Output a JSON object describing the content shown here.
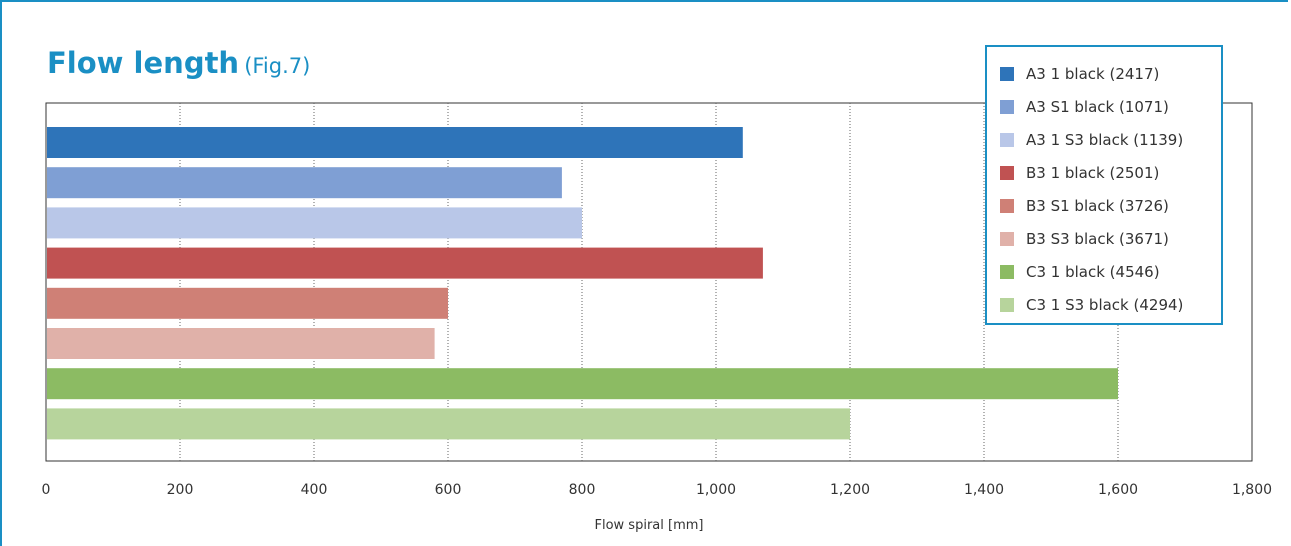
{
  "title": {
    "main": "Flow length",
    "sub": "(Fig.7)"
  },
  "chart_data": {
    "type": "bar",
    "orientation": "horizontal",
    "xlabel": "Flow spiral [mm]",
    "xlim": [
      0,
      1800
    ],
    "xticks": [
      0,
      200,
      400,
      600,
      800,
      1000,
      1200,
      1400,
      1600,
      1800
    ],
    "xtick_labels": [
      "0",
      "200",
      "400",
      "600",
      "800",
      "1,000",
      "1,200",
      "1,400",
      "1,600",
      "1,800"
    ],
    "grid": "vertical dotted",
    "legend_position": "top-right",
    "series": [
      {
        "name": "A3 1 black  (2417)",
        "value": 1040,
        "color": "#2e74b9"
      },
      {
        "name": "A3 S1 black (1071)",
        "value": 770,
        "color": "#7f9fd4"
      },
      {
        "name": "A3 1 S3 black (1139)",
        "value": 800,
        "color": "#b9c7e8"
      },
      {
        "name": "B3 1 black (2501)",
        "value": 1070,
        "color": "#c05252"
      },
      {
        "name": "B3 S1 black (3726)",
        "value": 600,
        "color": "#cf8076"
      },
      {
        "name": "B3 S3 black (3671)",
        "value": 580,
        "color": "#e0b1a9"
      },
      {
        "name": "C3 1 black (4546)",
        "value": 1600,
        "color": "#8cbb63"
      },
      {
        "name": "C3 1 S3 black (4294)",
        "value": 1200,
        "color": "#b7d49c"
      }
    ]
  }
}
